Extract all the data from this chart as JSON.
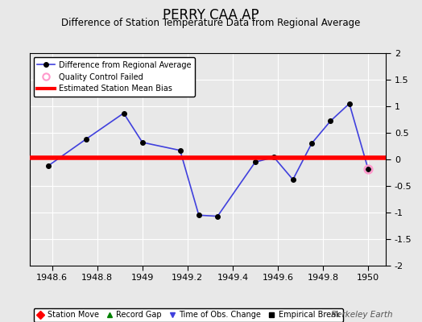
{
  "title": "PERRY CAA AP",
  "subtitle": "Difference of Station Temperature Data from Regional Average",
  "background_color": "#e8e8e8",
  "plot_bg_color": "#e8e8e8",
  "xlim": [
    1948.5,
    1950.08
  ],
  "ylim": [
    -2.0,
    2.0
  ],
  "xticks": [
    1948.6,
    1948.8,
    1949.0,
    1949.2,
    1949.4,
    1949.6,
    1949.8,
    1950.0
  ],
  "yticks": [
    -2.0,
    -1.5,
    -1.0,
    -0.5,
    0.0,
    0.5,
    1.0,
    1.5,
    2.0
  ],
  "x_data": [
    1948.583,
    1948.75,
    1948.917,
    1949.0,
    1949.167,
    1949.25,
    1949.333,
    1949.5,
    1949.583,
    1949.667,
    1949.75,
    1949.833,
    1949.917,
    1950.0
  ],
  "y_data": [
    -0.12,
    0.38,
    0.87,
    0.32,
    0.17,
    -1.05,
    -1.07,
    -0.05,
    0.04,
    -0.38,
    0.3,
    0.72,
    1.05,
    -0.18
  ],
  "line_color": "#4040dd",
  "line_width": 1.2,
  "marker_color": "black",
  "marker_size": 4,
  "bias_y": 0.03,
  "bias_color": "red",
  "bias_linewidth": 4.0,
  "qc_failed_x": [
    1950.0
  ],
  "qc_failed_y": [
    -0.18
  ],
  "qc_color": "#ff99cc",
  "watermark": "Berkeley Earth",
  "legend_line_label": "Difference from Regional Average",
  "legend_qc_label": "Quality Control Failed",
  "legend_bias_label": "Estimated Station Mean Bias",
  "bottom_legend": [
    {
      "marker": "D",
      "color": "red",
      "label": "Station Move"
    },
    {
      "marker": "^",
      "color": "green",
      "label": "Record Gap"
    },
    {
      "marker": "v",
      "color": "#4040dd",
      "label": "Time of Obs. Change"
    },
    {
      "marker": "s",
      "color": "black",
      "label": "Empirical Break"
    }
  ]
}
